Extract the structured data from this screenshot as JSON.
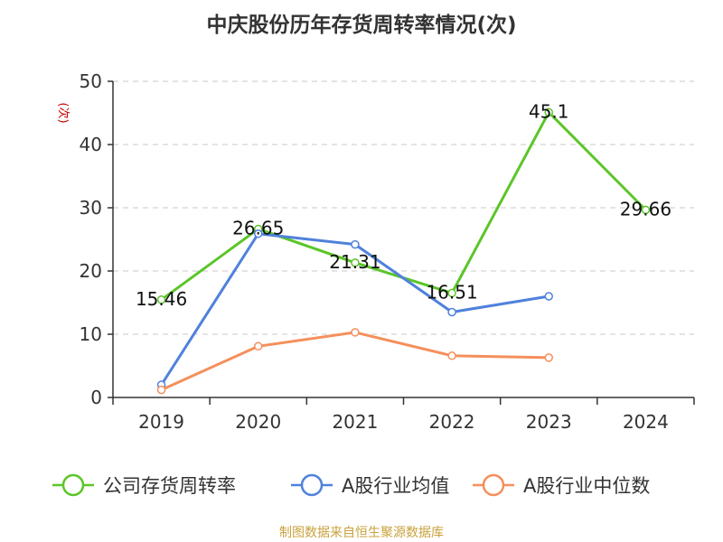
{
  "chart_data": {
    "type": "line",
    "title": "中庆股份历年存货周转率情况(次)",
    "ylabel": "(次)",
    "xlabel": "",
    "ylim": [
      0,
      50
    ],
    "yticks": [
      0,
      10,
      20,
      30,
      40,
      50
    ],
    "grid": true,
    "legend_position": "bottom",
    "categories": [
      "2019",
      "2020",
      "2021",
      "2022",
      "2023",
      "2024"
    ],
    "series": [
      {
        "name": "公司存货周转率",
        "color": "#5bc529",
        "values": [
          15.46,
          26.65,
          21.31,
          16.51,
          45.1,
          29.66
        ],
        "data_labels": [
          "15.46",
          "26.65",
          "21.31",
          "16.51",
          "45.1",
          "29.66"
        ],
        "segments": [
          [
            0,
            3
          ],
          [
            3,
            4
          ],
          [
            4,
            5
          ]
        ]
      },
      {
        "name": "A股行业均值",
        "color": "#4f81dc",
        "values": [
          2.0,
          25.9,
          24.2,
          13.5,
          16.0,
          null
        ]
      },
      {
        "name": "A股行业中位数",
        "color": "#f58f5b",
        "values": [
          1.2,
          8.1,
          10.3,
          6.6,
          6.3,
          null
        ]
      }
    ],
    "source_note": "制图数据来自恒生聚源数据库"
  },
  "colors": {
    "axis": "#333333",
    "grid": "#c8c8c8",
    "ylabel": "#cc0000",
    "source": "#c8a23c"
  }
}
